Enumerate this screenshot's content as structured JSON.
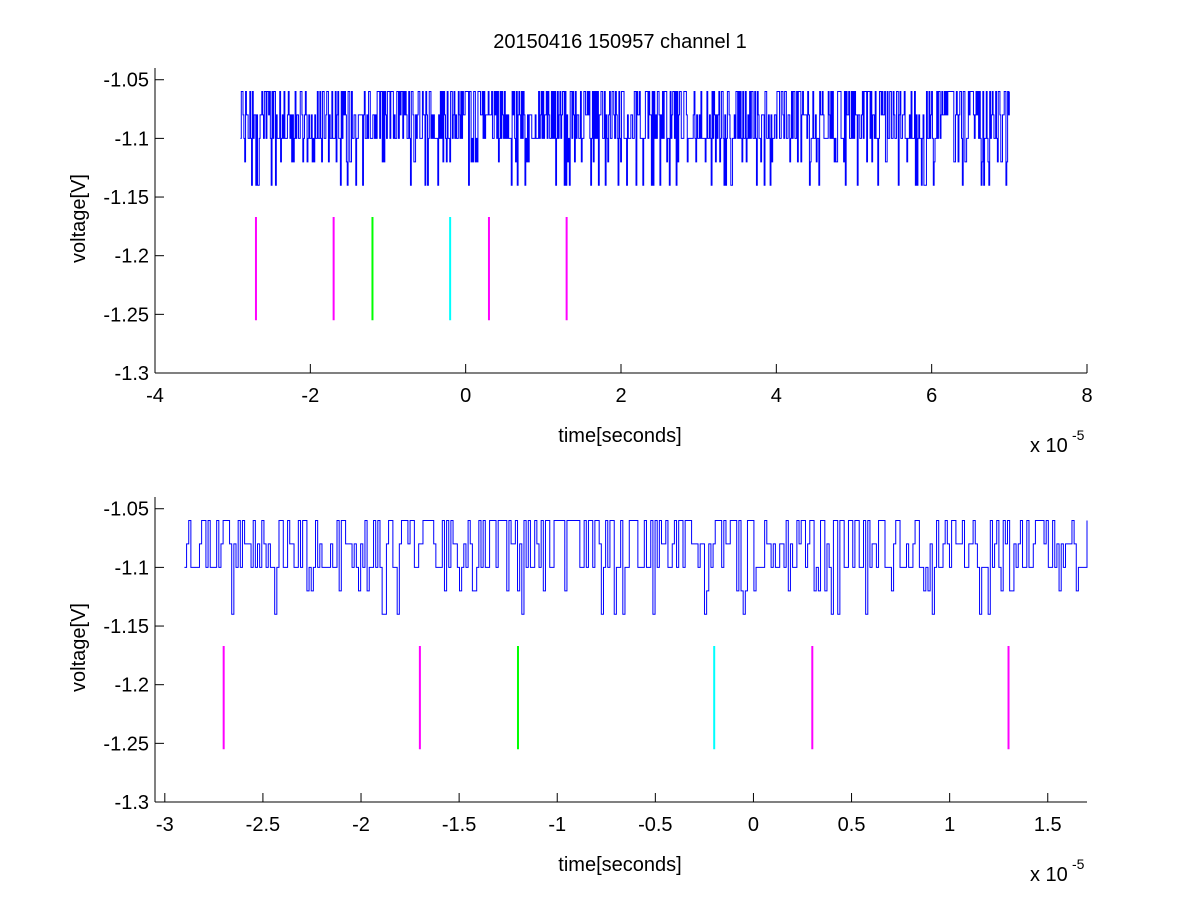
{
  "title": "20150416 150957 channel 1",
  "chart_data": [
    {
      "type": "line",
      "title": "20150416 150957 channel 1",
      "xlabel": "time[seconds]",
      "ylabel": "voltage[V]",
      "x_multiplier_label": "x 10",
      "x_multiplier_exponent": "-5",
      "xlim": [
        -4e-05,
        8e-05
      ],
      "ylim": [
        -1.3,
        -1.04
      ],
      "xticks": [
        -4e-05,
        -2e-05,
        0,
        2e-05,
        4e-05,
        6e-05,
        8e-05
      ],
      "xtick_labels": [
        "-4",
        "-2",
        "0",
        "2",
        "4",
        "6",
        "8"
      ],
      "yticks": [
        -1.05,
        -1.1,
        -1.15,
        -1.2,
        -1.25,
        -1.3
      ],
      "ytick_labels": [
        "-1.05",
        "-1.1",
        "-1.15",
        "-1.2",
        "-1.25",
        "-1.3"
      ],
      "grid": false,
      "signal": {
        "color": "#0000ff",
        "x_start": -2.9e-05,
        "x_end": 7e-05,
        "levels": [
          -1.06,
          -1.08,
          -1.1,
          -1.12,
          -1.14
        ],
        "baseline": -1.1
      },
      "markers": [
        {
          "x": -2.7e-05,
          "y_top": -1.167,
          "y_bottom": -1.255,
          "color": "#ff00ff"
        },
        {
          "x": -1.7e-05,
          "y_top": -1.167,
          "y_bottom": -1.255,
          "color": "#ff00ff"
        },
        {
          "x": -1.2e-05,
          "y_top": -1.167,
          "y_bottom": -1.255,
          "color": "#00ff00"
        },
        {
          "x": -2e-06,
          "y_top": -1.167,
          "y_bottom": -1.255,
          "color": "#00ffff"
        },
        {
          "x": 3e-06,
          "y_top": -1.167,
          "y_bottom": -1.255,
          "color": "#ff00ff"
        },
        {
          "x": 1.3e-05,
          "y_top": -1.167,
          "y_bottom": -1.255,
          "color": "#ff00ff"
        }
      ]
    },
    {
      "type": "line",
      "xlabel": "time[seconds]",
      "ylabel": "voltage[V]",
      "x_multiplier_label": "x 10",
      "x_multiplier_exponent": "-5",
      "xlim": [
        -3.05e-05,
        1.7e-05
      ],
      "ylim": [
        -1.3,
        -1.04
      ],
      "xticks": [
        -3e-05,
        -2.5e-05,
        -2e-05,
        -1.5e-05,
        -1e-05,
        -5e-06,
        0,
        5e-06,
        1e-05,
        1.5e-05
      ],
      "xtick_labels": [
        "-3",
        "-2.5",
        "-2",
        "-1.5",
        "-1",
        "-0.5",
        "0",
        "0.5",
        "1",
        "1.5"
      ],
      "yticks": [
        -1.05,
        -1.1,
        -1.15,
        -1.2,
        -1.25,
        -1.3
      ],
      "ytick_labels": [
        "-1.05",
        "-1.1",
        "-1.15",
        "-1.2",
        "-1.25",
        "-1.3"
      ],
      "grid": false,
      "signal": {
        "color": "#0000ff",
        "x_start": -2.9e-05,
        "x_end": 1.7e-05,
        "levels": [
          -1.06,
          -1.08,
          -1.1,
          -1.12,
          -1.14
        ],
        "baseline": -1.1
      },
      "markers": [
        {
          "x": -2.7e-05,
          "y_top": -1.167,
          "y_bottom": -1.255,
          "color": "#ff00ff"
        },
        {
          "x": -1.7e-05,
          "y_top": -1.167,
          "y_bottom": -1.255,
          "color": "#ff00ff"
        },
        {
          "x": -1.2e-05,
          "y_top": -1.167,
          "y_bottom": -1.255,
          "color": "#00ff00"
        },
        {
          "x": -2e-06,
          "y_top": -1.167,
          "y_bottom": -1.255,
          "color": "#00ffff"
        },
        {
          "x": 3e-06,
          "y_top": -1.167,
          "y_bottom": -1.255,
          "color": "#ff00ff"
        },
        {
          "x": 1.3e-05,
          "y_top": -1.167,
          "y_bottom": -1.255,
          "color": "#ff00ff"
        }
      ]
    }
  ]
}
